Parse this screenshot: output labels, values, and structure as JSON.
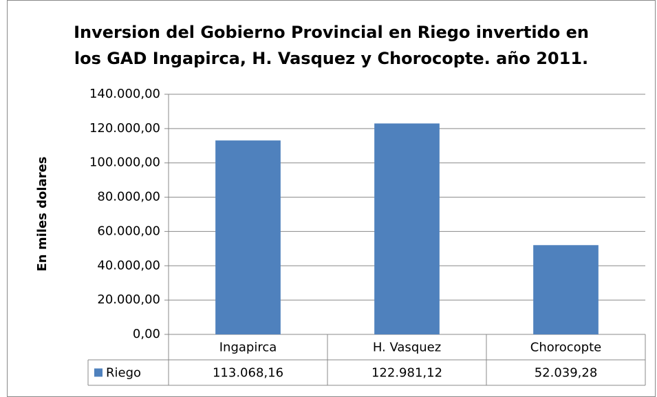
{
  "chart_data": {
    "type": "bar",
    "title": "Inversion del Gobierno Provincial en Riego invertido en\nlos GAD Ingapirca, H. Vasquez y Chorocopte. año 2011.",
    "y_label": "En miles dolares",
    "categories": [
      "Ingapirca",
      "H. Vasquez",
      "Chorocopte"
    ],
    "series": [
      {
        "name": "Riego",
        "color": "#4f81bd",
        "values": [
          113068.16,
          122981.12,
          52039.28
        ],
        "value_labels": [
          "113.068,16",
          "122.981,12",
          "52.039,28"
        ]
      }
    ],
    "ylim": [
      0,
      140000
    ],
    "yticks": [
      {
        "value": 0,
        "label": "0,00"
      },
      {
        "value": 20000,
        "label": "20.000,00"
      },
      {
        "value": 40000,
        "label": "40.000,00"
      },
      {
        "value": 60000,
        "label": "60.000,00"
      },
      {
        "value": 80000,
        "label": "80.000,00"
      },
      {
        "value": 100000,
        "label": "100.000,00"
      },
      {
        "value": 120000,
        "label": "120.000,00"
      },
      {
        "value": 140000,
        "label": "140.000,00"
      }
    ],
    "grid": true,
    "legend": "data-table"
  }
}
